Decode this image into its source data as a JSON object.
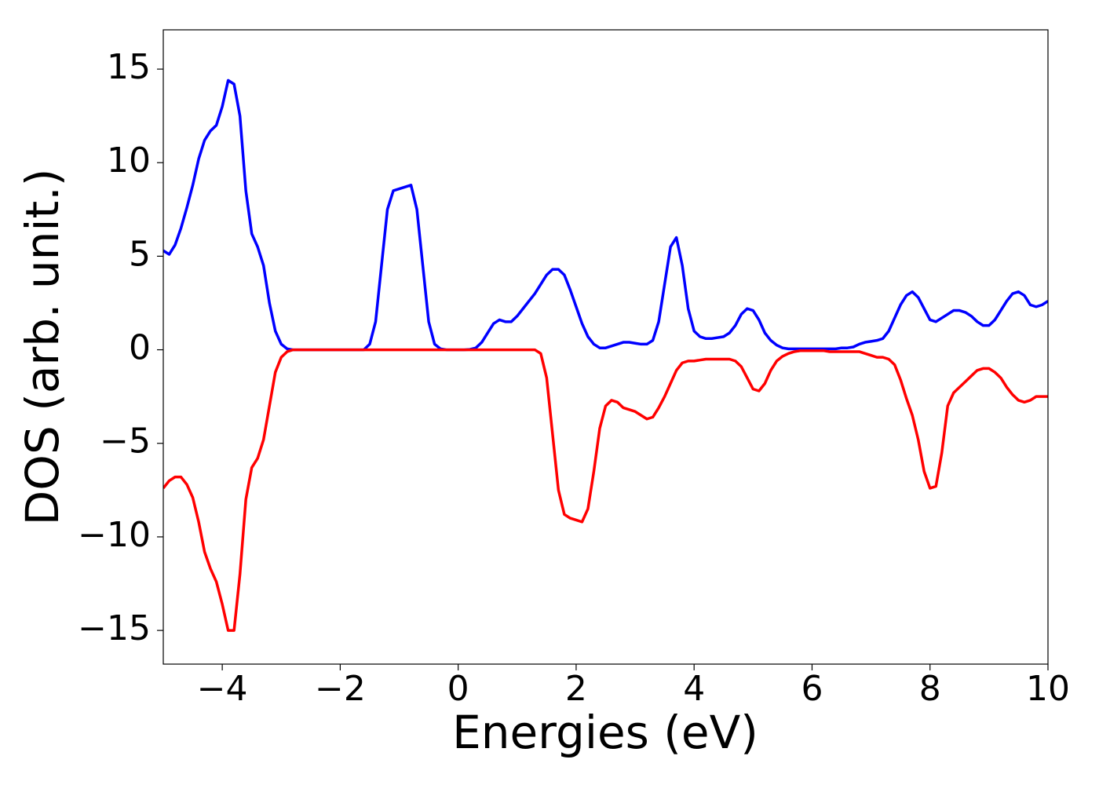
{
  "chart_data": {
    "type": "line",
    "xlabel": "Energies (eV)",
    "ylabel": "DOS (arb. unit.)",
    "xlim": [
      -5,
      10
    ],
    "ylim": [
      -16.8,
      17.1
    ],
    "xticks": [
      {
        "value": -4,
        "label": "−4"
      },
      {
        "value": -2,
        "label": "−2"
      },
      0,
      2,
      4,
      6,
      8,
      10
    ],
    "yticks": [
      {
        "value": -15,
        "label": "−15"
      },
      {
        "value": -10,
        "label": "−10"
      },
      {
        "value": -5,
        "label": "−5"
      },
      0,
      5,
      10,
      15
    ],
    "x": [
      -5.0,
      -4.9,
      -4.8,
      -4.7,
      -4.6,
      -4.5,
      -4.4,
      -4.3,
      -4.2,
      -4.1,
      -4.0,
      -3.9,
      -3.8,
      -3.7,
      -3.6,
      -3.5,
      -3.4,
      -3.3,
      -3.2,
      -3.1,
      -3.0,
      -2.9,
      -2.8,
      -2.7,
      -2.6,
      -2.5,
      -2.4,
      -2.3,
      -2.2,
      -2.1,
      -2.0,
      -1.9,
      -1.8,
      -1.7,
      -1.6,
      -1.5,
      -1.4,
      -1.3,
      -1.2,
      -1.1,
      -1.0,
      -0.9,
      -0.8,
      -0.7,
      -0.6,
      -0.5,
      -0.4,
      -0.3,
      -0.2,
      -0.1,
      0.0,
      0.1,
      0.2,
      0.3,
      0.4,
      0.5,
      0.6,
      0.7,
      0.8,
      0.9,
      1.0,
      1.1,
      1.2,
      1.3,
      1.4,
      1.5,
      1.6,
      1.7,
      1.8,
      1.9,
      2.0,
      2.1,
      2.2,
      2.3,
      2.4,
      2.5,
      2.6,
      2.7,
      2.8,
      2.9,
      3.0,
      3.1,
      3.2,
      3.3,
      3.4,
      3.5,
      3.6,
      3.7,
      3.8,
      3.9,
      4.0,
      4.1,
      4.2,
      4.3,
      4.4,
      4.5,
      4.6,
      4.7,
      4.8,
      4.9,
      5.0,
      5.1,
      5.2,
      5.3,
      5.4,
      5.5,
      5.6,
      5.7,
      5.8,
      5.9,
      6.0,
      6.1,
      6.2,
      6.3,
      6.4,
      6.5,
      6.6,
      6.7,
      6.8,
      6.9,
      7.0,
      7.1,
      7.2,
      7.3,
      7.4,
      7.5,
      7.6,
      7.7,
      7.8,
      7.9,
      8.0,
      8.1,
      8.2,
      8.3,
      8.4,
      8.5,
      8.6,
      8.7,
      8.8,
      8.9,
      9.0,
      9.1,
      9.2,
      9.3,
      9.4,
      9.5,
      9.6,
      9.7,
      9.8,
      9.9,
      10.0
    ],
    "series": [
      {
        "color": "#0000ff",
        "values": [
          5.3,
          5.1,
          5.6,
          6.5,
          7.6,
          8.8,
          10.2,
          11.2,
          11.7,
          12.0,
          13.0,
          14.4,
          14.2,
          12.5,
          8.5,
          6.2,
          5.5,
          4.5,
          2.5,
          1.0,
          0.3,
          0.05,
          0,
          0,
          0,
          0,
          0,
          0,
          0,
          0,
          0,
          0,
          0,
          0,
          0,
          0.3,
          1.5,
          4.5,
          7.5,
          8.5,
          8.6,
          8.7,
          8.8,
          7.5,
          4.5,
          1.5,
          0.3,
          0.05,
          0,
          0,
          0,
          0,
          0.02,
          0.1,
          0.4,
          0.9,
          1.4,
          1.6,
          1.5,
          1.5,
          1.8,
          2.2,
          2.6,
          3.0,
          3.5,
          4.0,
          4.3,
          4.3,
          4.0,
          3.2,
          2.3,
          1.4,
          0.7,
          0.3,
          0.1,
          0.1,
          0.2,
          0.3,
          0.4,
          0.4,
          0.35,
          0.3,
          0.3,
          0.5,
          1.5,
          3.5,
          5.5,
          6.0,
          4.5,
          2.2,
          1.0,
          0.7,
          0.6,
          0.6,
          0.65,
          0.7,
          0.9,
          1.3,
          1.9,
          2.2,
          2.1,
          1.6,
          0.9,
          0.5,
          0.25,
          0.1,
          0.05,
          0.05,
          0.05,
          0.05,
          0.05,
          0.05,
          0.05,
          0.05,
          0.05,
          0.1,
          0.1,
          0.15,
          0.3,
          0.4,
          0.45,
          0.5,
          0.6,
          1.0,
          1.7,
          2.4,
          2.9,
          3.1,
          2.8,
          2.2,
          1.6,
          1.5,
          1.7,
          1.9,
          2.1,
          2.1,
          2.0,
          1.8,
          1.5,
          1.3,
          1.3,
          1.6,
          2.1,
          2.6,
          3.0,
          3.1,
          2.9,
          2.4,
          2.3,
          2.4,
          2.6
        ]
      },
      {
        "color": "#ff0000",
        "values": [
          -7.4,
          -7.0,
          -6.8,
          -6.8,
          -7.2,
          -7.9,
          -9.2,
          -10.8,
          -11.7,
          -12.4,
          -13.6,
          -15.0,
          -15.0,
          -12.0,
          -8.0,
          -6.3,
          -5.8,
          -4.8,
          -3.0,
          -1.2,
          -0.4,
          -0.1,
          0,
          0,
          0,
          0,
          0,
          0,
          0,
          0,
          0,
          0,
          0,
          0,
          0,
          0,
          0,
          0,
          0,
          0,
          0,
          0,
          0,
          0,
          0,
          0,
          0,
          0,
          0,
          0,
          0,
          0,
          0,
          0,
          0,
          0,
          0,
          0,
          0,
          0,
          0,
          0,
          0,
          0,
          -0.2,
          -1.5,
          -4.5,
          -7.5,
          -8.8,
          -9.0,
          -9.1,
          -9.2,
          -8.5,
          -6.5,
          -4.2,
          -3.0,
          -2.7,
          -2.8,
          -3.1,
          -3.2,
          -3.3,
          -3.5,
          -3.7,
          -3.6,
          -3.1,
          -2.5,
          -1.8,
          -1.1,
          -0.7,
          -0.6,
          -0.6,
          -0.55,
          -0.5,
          -0.5,
          -0.5,
          -0.5,
          -0.5,
          -0.6,
          -0.9,
          -1.5,
          -2.1,
          -2.2,
          -1.8,
          -1.1,
          -0.6,
          -0.35,
          -0.2,
          -0.1,
          -0.05,
          -0.05,
          -0.05,
          -0.05,
          -0.05,
          -0.1,
          -0.1,
          -0.1,
          -0.1,
          -0.1,
          -0.1,
          -0.2,
          -0.3,
          -0.4,
          -0.4,
          -0.5,
          -0.8,
          -1.6,
          -2.6,
          -3.5,
          -4.8,
          -6.5,
          -7.4,
          -7.3,
          -5.5,
          -3.0,
          -2.3,
          -2.0,
          -1.7,
          -1.4,
          -1.1,
          -1.0,
          -1.0,
          -1.2,
          -1.5,
          -2.0,
          -2.4,
          -2.7,
          -2.8,
          -2.7,
          -2.5,
          -2.5,
          -2.5
        ]
      }
    ]
  }
}
